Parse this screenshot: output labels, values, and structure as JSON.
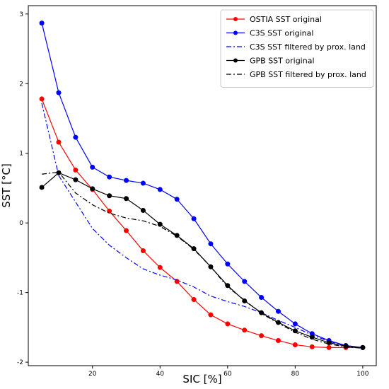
{
  "chart_data": {
    "type": "line",
    "title": "",
    "xlabel": "SIC [%]",
    "ylabel": "SST  [°C]",
    "xlim": [
      1,
      104
    ],
    "ylim": [
      -2.05,
      3.12
    ],
    "x_ticks": [
      20,
      40,
      60,
      80,
      100
    ],
    "y_ticks": [
      -2,
      -1,
      0,
      1,
      2,
      3
    ],
    "grid": false,
    "legend_position": "top-right",
    "x": [
      5,
      10,
      15,
      20,
      25,
      30,
      35,
      40,
      45,
      50,
      55,
      60,
      65,
      70,
      75,
      80,
      85,
      90,
      95,
      100
    ],
    "series": [
      {
        "name": "OSTIA SST original",
        "color": "#ff0000",
        "line_style": "solid",
        "marker": "circle",
        "values": [
          1.78,
          1.16,
          0.76,
          0.48,
          0.17,
          -0.11,
          -0.4,
          -0.64,
          -0.84,
          -1.1,
          -1.32,
          -1.45,
          -1.54,
          -1.62,
          -1.69,
          -1.75,
          -1.78,
          -1.79,
          -1.79,
          -1.79
        ]
      },
      {
        "name": "C3S SST original",
        "color": "#0000ff",
        "line_style": "solid",
        "marker": "circle",
        "values": [
          2.87,
          1.87,
          1.23,
          0.8,
          0.66,
          0.61,
          0.57,
          0.48,
          0.34,
          0.06,
          -0.3,
          -0.59,
          -0.84,
          -1.07,
          -1.27,
          -1.45,
          -1.59,
          -1.69,
          -1.76,
          -1.79
        ]
      },
      {
        "name": "C3S SST filtered by prox. land",
        "color": "#0000ff",
        "line_style": "dashdot",
        "marker": "none",
        "values": [
          1.72,
          0.68,
          0.3,
          -0.08,
          -0.32,
          -0.5,
          -0.66,
          -0.75,
          -0.82,
          -0.92,
          -1.05,
          -1.13,
          -1.2,
          -1.29,
          -1.4,
          -1.5,
          -1.61,
          -1.7,
          -1.77,
          -1.8
        ]
      },
      {
        "name": "GPB SST original",
        "color": "#000000",
        "line_style": "solid",
        "marker": "circle",
        "values": [
          0.51,
          0.72,
          0.62,
          0.49,
          0.39,
          0.35,
          0.18,
          -0.02,
          -0.18,
          -0.37,
          -0.63,
          -0.9,
          -1.12,
          -1.29,
          -1.43,
          -1.55,
          -1.64,
          -1.72,
          -1.77,
          -1.79
        ]
      },
      {
        "name": "GPB SST filtered by prox. land",
        "color": "#000000",
        "line_style": "dashdot",
        "marker": "none",
        "values": [
          0.7,
          0.73,
          0.43,
          0.26,
          0.14,
          0.07,
          0.03,
          -0.05,
          -0.19,
          -0.38,
          -0.63,
          -0.92,
          -1.11,
          -1.3,
          -1.44,
          -1.57,
          -1.67,
          -1.74,
          -1.78,
          -1.8
        ]
      }
    ]
  }
}
